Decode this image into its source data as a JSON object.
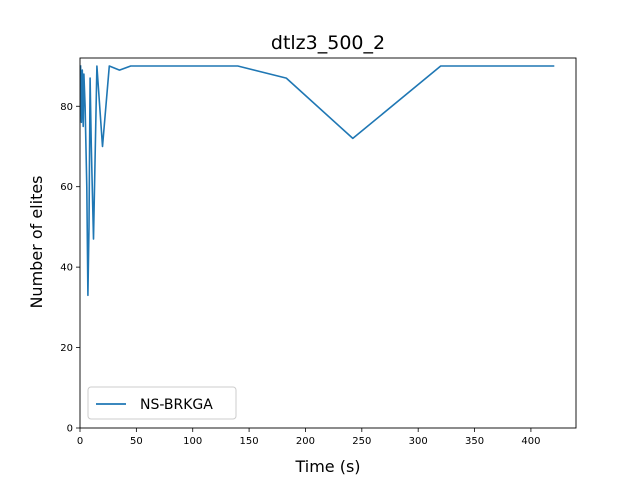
{
  "chart_data": {
    "type": "line",
    "title": "dtlz3_500_2",
    "xlabel": "Time (s)",
    "ylabel": "Number of elites",
    "xlim": [
      0,
      440
    ],
    "ylim": [
      0,
      92
    ],
    "xticks": [
      0,
      50,
      100,
      150,
      200,
      250,
      300,
      350,
      400
    ],
    "yticks": [
      0,
      20,
      40,
      60,
      80
    ],
    "grid": false,
    "legend_position": "lower-left",
    "series": [
      {
        "name": "NS-BRKGA",
        "color": "#1f77b4",
        "x": [
          0.5,
          1.2,
          2,
          2.8,
          3.5,
          4.5,
          6,
          7,
          8,
          9,
          10,
          12,
          15,
          20,
          26,
          35,
          45,
          140,
          183,
          242,
          320,
          420
        ],
        "y": [
          90,
          76,
          89,
          75,
          88,
          80,
          60,
          33,
          50,
          87,
          70,
          47,
          90,
          70,
          90,
          89,
          90,
          90,
          87,
          72,
          90,
          90
        ]
      }
    ]
  }
}
